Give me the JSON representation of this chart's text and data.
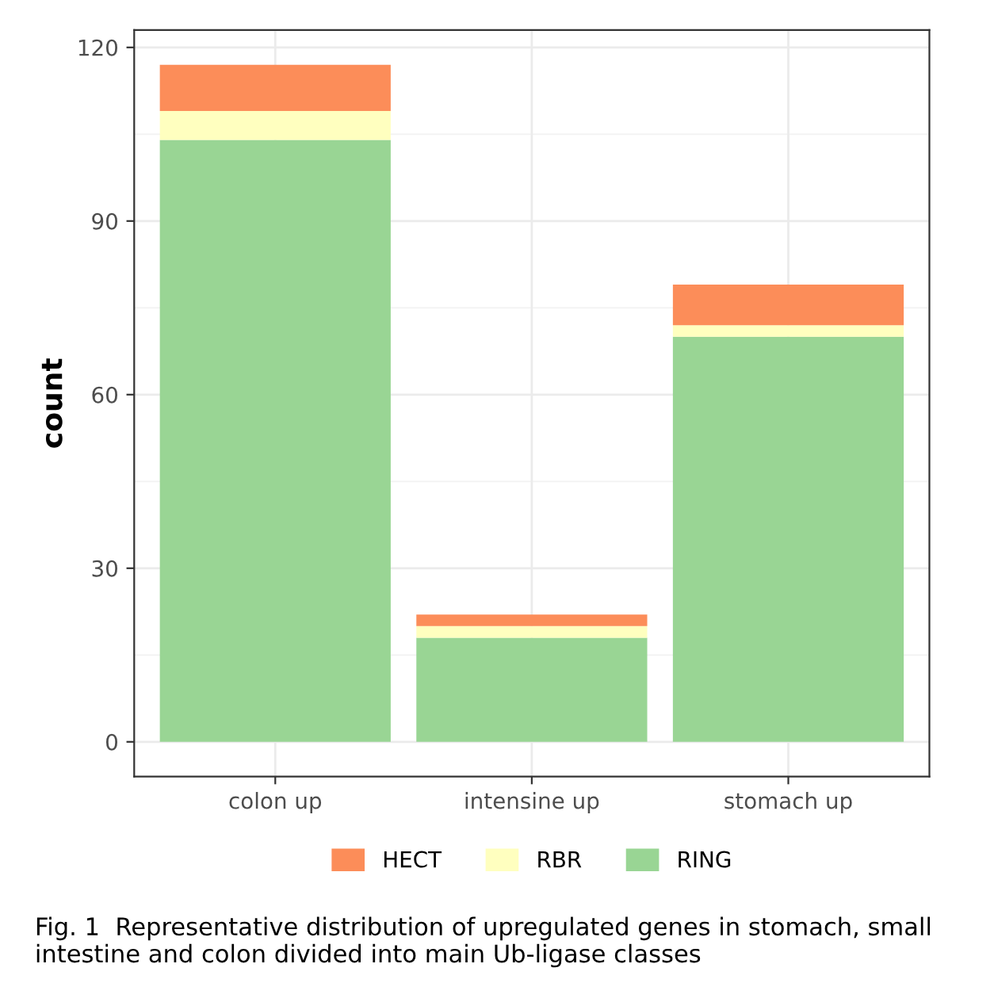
{
  "chart_data": {
    "type": "bar",
    "stacked": true,
    "ylabel": "count",
    "categories": [
      "colon up",
      "intensine up",
      "stomach up"
    ],
    "series": [
      {
        "name": "RING",
        "color": "#99d594",
        "values": [
          104,
          18,
          70
        ]
      },
      {
        "name": "RBR",
        "color": "#ffffbf",
        "values": [
          5,
          2,
          2
        ]
      },
      {
        "name": "HECT",
        "color": "#fc8d59",
        "values": [
          8,
          2,
          7
        ]
      }
    ],
    "ylim": [
      -6,
      123
    ],
    "yticks": [
      0,
      30,
      60,
      90,
      120
    ],
    "grid": true,
    "legend": "bottom",
    "annotations": [
      "Fig. 1  Representative distribution of upregulated genes in stomach, small intestine and colon divided into main Ub-ligase classes"
    ]
  }
}
